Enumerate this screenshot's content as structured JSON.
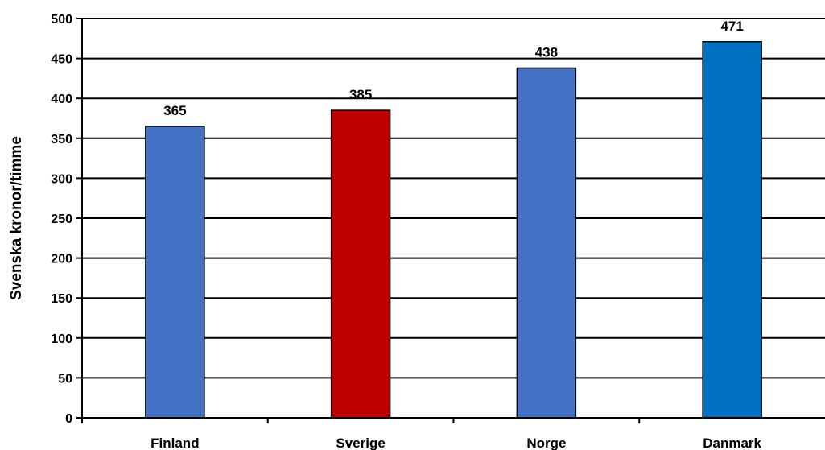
{
  "chart_data": {
    "type": "bar",
    "title": "",
    "xlabel": "",
    "ylabel": "Svenska kronor/timme",
    "categories": [
      "Finland",
      "Sverige",
      "Norge",
      "Danmark"
    ],
    "values": [
      365,
      385,
      438,
      471
    ],
    "bar_colors": [
      "#4472C4",
      "#C00000",
      "#4472C4",
      "#0070C0"
    ],
    "ylim": [
      0,
      500
    ],
    "yticks": [
      0,
      50,
      100,
      150,
      200,
      250,
      300,
      350,
      400,
      450,
      500
    ],
    "grid": true,
    "legend": "none",
    "data_labels": true
  }
}
